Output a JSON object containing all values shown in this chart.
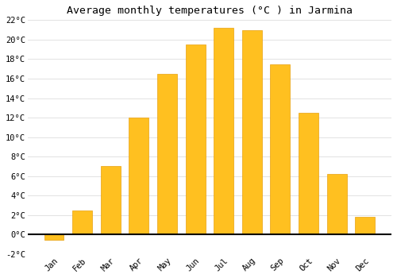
{
  "title": "Average monthly temperatures (°C ) in Jarmina",
  "months": [
    "Jan",
    "Feb",
    "Mar",
    "Apr",
    "May",
    "Jun",
    "Jul",
    "Aug",
    "Sep",
    "Oct",
    "Nov",
    "Dec"
  ],
  "values": [
    -0.5,
    2.5,
    7.0,
    12.0,
    16.5,
    19.5,
    21.2,
    21.0,
    17.5,
    12.5,
    6.2,
    1.8
  ],
  "bar_color": "#FFC020",
  "bar_edge_color": "#E8A010",
  "background_color": "#FFFFFF",
  "plot_bg_color": "#FFFFFF",
  "grid_color": "#DDDDDD",
  "ylim": [
    -2,
    22
  ],
  "yticks": [
    -2,
    0,
    2,
    4,
    6,
    8,
    10,
    12,
    14,
    16,
    18,
    20,
    22
  ],
  "title_fontsize": 9.5,
  "tick_fontsize": 7.5,
  "bar_width": 0.7
}
